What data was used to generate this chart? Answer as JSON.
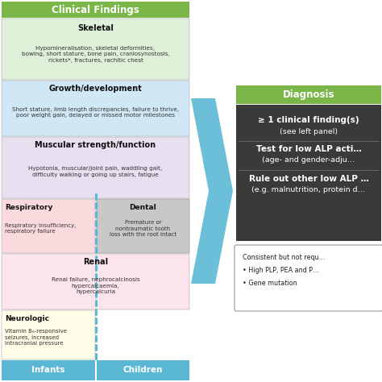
{
  "title": "Clinical Findings",
  "diagnosis_title": "Diagnosis",
  "bg_color": "#ffffff",
  "header_green": "#7ab648",
  "header_text_color": "#ffffff",
  "skeletal_bg": "#dff0d8",
  "growth_bg": "#d0e8f5",
  "muscular_bg": "#e8dff0",
  "dental_bg": "#c8c8c8",
  "respiratory_bg": "#fadadd",
  "renal_bg": "#fce4ec",
  "neurologic_bg": "#fffde7",
  "infants_bg": "#5bb8d4",
  "children_bg": "#5bb8d4",
  "diagnosis_dark_bg": "#3a3a3a",
  "arrow_color": "#5bb8d4",
  "dashed_line_color": "#5bb8d4",
  "skeletal_title": "Skeletal",
  "skeletal_text": "Hypomineralisation, skeletal deformities,\nbowing, short stature, bone pain, craniosynostosis,\nrickets*, fractures, rachitic chest",
  "growth_title": "Growth/development",
  "growth_text": "Short stature, limb length discrepancies, failure to thrive,\npoor weight gain, delayed or missed motor milestones",
  "muscular_title": "Muscular strength/function",
  "muscular_text": "Hypotonia, muscular/joint pain, waddling gait,\ndifficulty walking or going up stairs, fatigue",
  "dental_title": "Dental",
  "dental_text": "Premature or\nnontraumatic tooth\nloss with the root intact",
  "respiratory_title": "Respiratory",
  "respiratory_text": "Respiratory insufficiency,\nrespiratory failure",
  "renal_title": "Renal",
  "renal_text": "Renal failure, nephrocalcinosis\nhypercalcaemia,\nhypercalcuria",
  "neurologic_title": "Neurologic",
  "neurologic_text": "Vitamin B₆-responsive\nseizures, increased\nintracranial pressure",
  "infants_label": "Infants",
  "children_label": "Children",
  "diag_line1": "≥ 1 clinical finding(s)",
  "diag_line2": "(see left panel)",
  "diag_line3": "Test for low ALP acti…",
  "diag_line4": "(age- and gender-adju…",
  "diag_line5": "Rule out other low ALP …",
  "diag_line6": "(e.g. malnutrition, protein d…",
  "consistent_text": "Consistent but not requ…",
  "bullet1": "• High PLP, PEA and P…",
  "bullet2": "• Gene mutation"
}
